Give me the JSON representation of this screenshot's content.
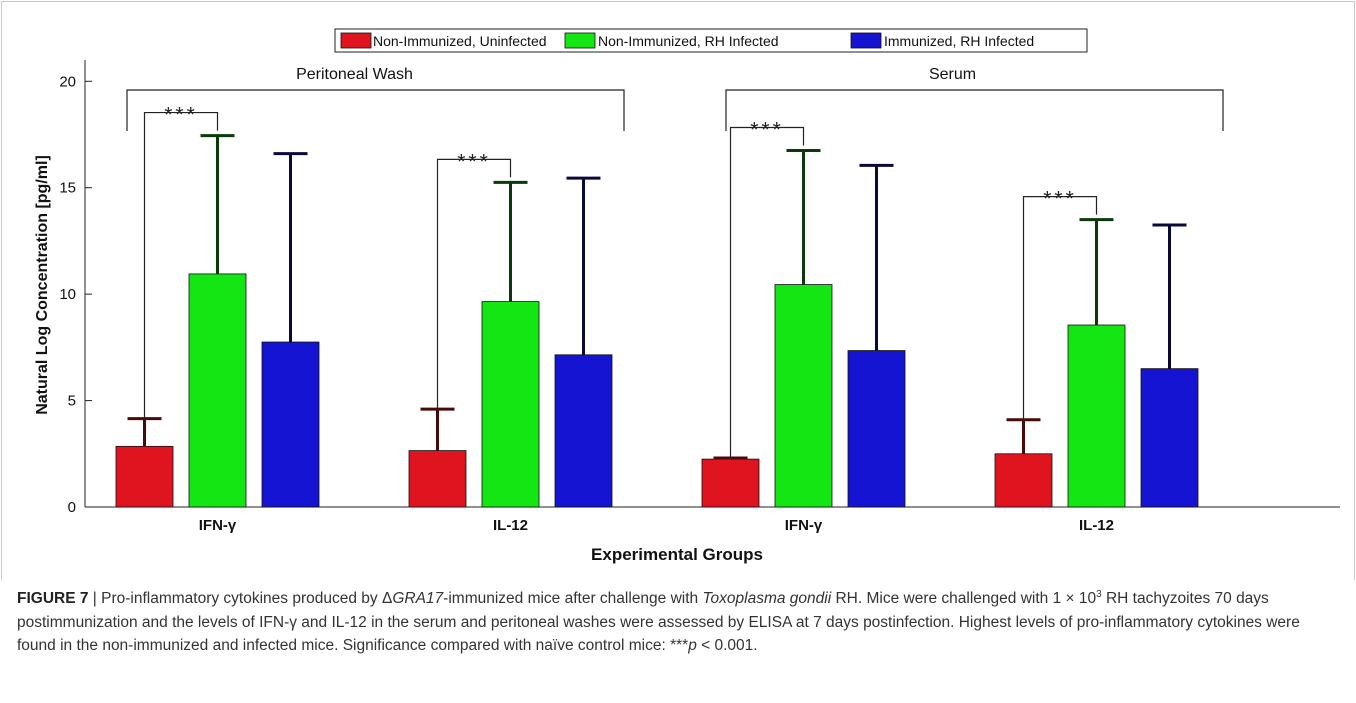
{
  "figure": {
    "caption_label": "FIGURE 7",
    "caption_sep": " | ",
    "caption_part1": "Pro-inflammatory cytokines produced by ",
    "caption_delta": "Δ",
    "caption_gene": "GRA17",
    "caption_part2": "-immunized mice after challenge with ",
    "caption_species": "Toxoplasma gondii",
    "caption_part3": " RH. Mice were challenged with 1 × 10",
    "caption_exp": "3",
    "caption_part4": " RH tachyzoites 70 days postimmunization and the levels of IFN-γ and IL-12 in the serum and peritoneal washes were assessed by ELISA at 7 days postinfection. Highest levels of pro-inflammatory cytokines were found in the non-immunized and infected mice. Significance compared with naïve control mice: ",
    "caption_stars": "***",
    "caption_p": "p",
    "caption_part5": " < 0.001."
  },
  "chart_data": {
    "type": "bar",
    "xlabel": "Experimental Groups",
    "ylabel": "Natural Log Concentration [pg/ml]",
    "ylim": [
      0,
      21
    ],
    "yticks": [
      0,
      5,
      10,
      15,
      20
    ],
    "panels": [
      "Peritoneal Wash",
      "Serum"
    ],
    "categories": [
      "IFN-γ",
      "IL-12",
      "IFN-γ",
      "IL-12"
    ],
    "legend": {
      "position": "top-center"
    },
    "series": [
      {
        "name": "Non-Immunized, Uninfected",
        "color": "#e0141e",
        "values": [
          2.85,
          2.65,
          2.25,
          2.5
        ],
        "error_upper": [
          4.15,
          4.6,
          2.3,
          4.1
        ]
      },
      {
        "name": "Non-Immunized, RH Infected",
        "color": "#14e614",
        "values": [
          10.95,
          9.65,
          10.45,
          8.55
        ],
        "error_upper": [
          17.45,
          15.25,
          16.75,
          13.5
        ]
      },
      {
        "name": "Immunized, RH Infected",
        "color": "#1414d2",
        "values": [
          7.75,
          7.15,
          7.35,
          6.5
        ],
        "error_upper": [
          16.6,
          15.45,
          16.05,
          13.25
        ]
      }
    ],
    "significance": {
      "label": "***",
      "comparisons": [
        "IFN-γ (Peritoneal Wash)",
        "IL-12 (Peritoneal Wash)",
        "IFN-γ (Serum)",
        "IL-12 (Serum)"
      ]
    }
  }
}
